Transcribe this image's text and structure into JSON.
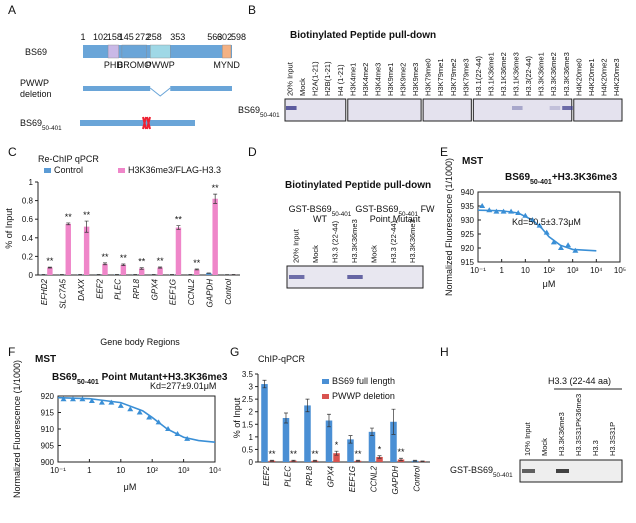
{
  "letters": [
    "A",
    "B",
    "C",
    "D",
    "E",
    "F",
    "G",
    "H"
  ],
  "panel_a": {
    "protein": "BS69",
    "positions": [
      1,
      102,
      145,
      158,
      258,
      272,
      353,
      563,
      598,
      602
    ],
    "domains": [
      "PHD",
      "BROMO",
      "PWWP",
      "MYND"
    ],
    "deletion_label": [
      "PWWP",
      "deletion"
    ],
    "construct": {
      "main": "BS69",
      "sub": "50-401"
    }
  },
  "panel_b": {
    "title": "Biotinylated Peptide pull-down",
    "lanes": [
      "20% Input",
      "Mock",
      "H2A(1-21)",
      "H2B(1-21)",
      "H4 (1-21)",
      "H3K4me1",
      "H3K4me2",
      "H3K4me3",
      "H3K9me1",
      "H3K9me2",
      "H3K9me3",
      "H3K79me0",
      "H3K79me1",
      "H3K79me2",
      "H3K79me3",
      "H3.1(22-44)",
      "H3.1K36me1",
      "H3.1K36me2",
      "H3.1K36me3",
      "H3.3(22-44)",
      "H3.3K36me1",
      "H3.3K36me2",
      "H3.3K36me3",
      "H4K20me0",
      "H4K20me1",
      "H4K20me2",
      "H4K20me3"
    ],
    "row_label": {
      "main": "BS69",
      "sub": "50-401"
    }
  },
  "panel_d": {
    "title": "Biotinylated Peptide pull-down",
    "groups": [
      {
        "main": "GST-BS69",
        "sub": "50-401",
        "line2": "WT"
      },
      {
        "main": "GST-BS69",
        "sub": "50-401",
        "rest": " FW",
        "line2": "Point Mutant"
      }
    ],
    "lanes": [
      "20% Input",
      "Mock",
      "H3.3 (22-44)",
      "H3.3K36me3",
      "Mock",
      "H3.3 (22-44)",
      "H3.3K36me3"
    ]
  },
  "panel_h": {
    "group": "H3.3 (22-44 aa)",
    "lanes": [
      "10% Input",
      "Mock",
      "H3.3K36me3",
      "H3.3S31PK36me3",
      "H3.3",
      "H3.3S31P"
    ],
    "row_label": {
      "main": "GST-BS69",
      "sub": "50-401"
    }
  },
  "chart_data": [
    {
      "type": "bar",
      "title": "Re-ChIP qPCR",
      "ylabel": "% of Input",
      "xlabel": "Gene body Regions",
      "categories": [
        "EFHD2",
        "SLC7A5",
        "DAXX",
        "EEF2",
        "PLEC",
        "RPL8",
        "GPX4",
        "EEF1G",
        "CCNL2",
        "GAPDH",
        "Control"
      ],
      "series": [
        {
          "name": "Control",
          "color": "#5b9bd5",
          "values": [
            0.005,
            0.004,
            0.005,
            0.004,
            0.005,
            0.004,
            0.004,
            0.005,
            0.004,
            0.02,
            0.003
          ],
          "errors": [
            0.001,
            0.001,
            0.001,
            0.001,
            0.001,
            0.001,
            0.001,
            0.001,
            0.001,
            0.002,
            0.001
          ]
        },
        {
          "name": "H3K36me3/FLAG-H3.3",
          "color": "#ef86c9",
          "values": [
            0.08,
            0.55,
            0.52,
            0.12,
            0.11,
            0.07,
            0.08,
            0.51,
            0.06,
            0.82,
            0.004
          ],
          "errors": [
            0.005,
            0.01,
            0.06,
            0.01,
            0.008,
            0.008,
            0.006,
            0.02,
            0.005,
            0.05,
            0.001
          ]
        }
      ],
      "annotations": [
        "**",
        "**",
        "**",
        "**",
        "**",
        "**",
        "**",
        "**",
        "**",
        "**"
      ],
      "ylim": [
        0,
        1
      ],
      "yticks": [
        0,
        0.2,
        0.4,
        0.6,
        0.8,
        1
      ],
      "italic_categories": true
    },
    {
      "type": "scatter",
      "title": "MST",
      "subtitle": {
        "main": "BS69",
        "sub": "50-401",
        "rest": "+H3.3K36me3"
      },
      "annotation": "Kd=50.5±3.73μM",
      "xlabel": "μM",
      "ylabel": "Normalized Fluorescence (1/1000)",
      "x": [
        0.15,
        0.3,
        0.6,
        1.2,
        2.5,
        5,
        10,
        20,
        40,
        80,
        160,
        320,
        640,
        1300
      ],
      "values": [
        935,
        933.5,
        933,
        933,
        933,
        932.5,
        931.5,
        930,
        928,
        925.5,
        922,
        920,
        921,
        919
      ],
      "fit_x": [
        0.1,
        1,
        5,
        20,
        50,
        100,
        300,
        1000,
        10000
      ],
      "fit_y": [
        933.5,
        933.3,
        932.5,
        930,
        927,
        924,
        921,
        919.5,
        919
      ],
      "color": "#3a8fd6",
      "log_x": true,
      "xlim": [
        0.1,
        100000
      ],
      "xticks": [
        {
          "value": 0.1,
          "label": "10⁻¹"
        },
        1,
        10,
        {
          "value": 100,
          "label": "10²"
        },
        {
          "value": 1000,
          "label": "10³"
        },
        {
          "value": 10000,
          "label": "10⁴"
        },
        {
          "value": 100000,
          "label": "10⁵"
        }
      ],
      "ylim": [
        915,
        940
      ],
      "yticks": [
        915,
        920,
        925,
        930,
        935,
        940
      ]
    },
    {
      "type": "scatter",
      "title": "MST",
      "subtitle": {
        "main": "BS69",
        "sub": "50-401",
        "rest": " Point Mutant+H3.3K36me3"
      },
      "annotation": "Kd=277±9.01μM",
      "xlabel": "μM",
      "ylabel": "Normalized Fluorescence (1/1000)",
      "x": [
        0.15,
        0.3,
        0.6,
        1.2,
        2.5,
        5,
        10,
        20,
        40,
        80,
        160,
        320,
        640,
        1300
      ],
      "values": [
        919,
        919,
        919,
        918.5,
        918,
        918,
        917,
        916,
        915,
        913.5,
        912,
        910,
        908.5,
        907
      ],
      "fit_x": [
        0.1,
        1,
        10,
        50,
        100,
        300,
        1000,
        3000,
        10000
      ],
      "fit_y": [
        919.5,
        919.2,
        918,
        915.5,
        913.5,
        910,
        907.5,
        906.5,
        906
      ],
      "color": "#3a8fd6",
      "log_x": true,
      "xlim": [
        0.1,
        10000
      ],
      "xticks": [
        {
          "value": 0.1,
          "label": "10⁻¹"
        },
        1,
        10,
        {
          "value": 100,
          "label": "10²"
        },
        {
          "value": 1000,
          "label": "10³"
        },
        {
          "value": 10000,
          "label": "10⁴"
        }
      ],
      "ylim": [
        900,
        920
      ],
      "yticks": [
        900,
        905,
        910,
        915,
        920
      ]
    },
    {
      "type": "bar",
      "title": "ChIP-qPCR",
      "ylabel": "% of Input",
      "categories": [
        "EEF2",
        "PLEC",
        "RPL8",
        "GPX4",
        "EEF1G",
        "CCNL2",
        "GAPDH",
        "Control"
      ],
      "series": [
        {
          "name": "BS69 full length",
          "color": "#4a8fd4",
          "values": [
            3.1,
            1.75,
            2.25,
            1.65,
            0.9,
            1.2,
            1.6,
            0.05
          ],
          "errors": [
            0.15,
            0.2,
            0.25,
            0.25,
            0.15,
            0.15,
            0.5,
            0.02
          ]
        },
        {
          "name": "PWWP deletion",
          "color": "#d9534f",
          "values": [
            0.05,
            0.05,
            0.05,
            0.35,
            0.05,
            0.2,
            0.1,
            0.03
          ],
          "errors": [
            0.02,
            0.02,
            0.02,
            0.08,
            0.02,
            0.05,
            0.05,
            0.01
          ]
        }
      ],
      "annotations": [
        "**",
        "**",
        "**",
        "*",
        "**",
        "*",
        "**"
      ],
      "ylim": [
        0,
        3.5
      ],
      "yticks": [
        0,
        0.5,
        1,
        1.5,
        2,
        2.5,
        3,
        3.5
      ],
      "italic_categories": true
    }
  ]
}
